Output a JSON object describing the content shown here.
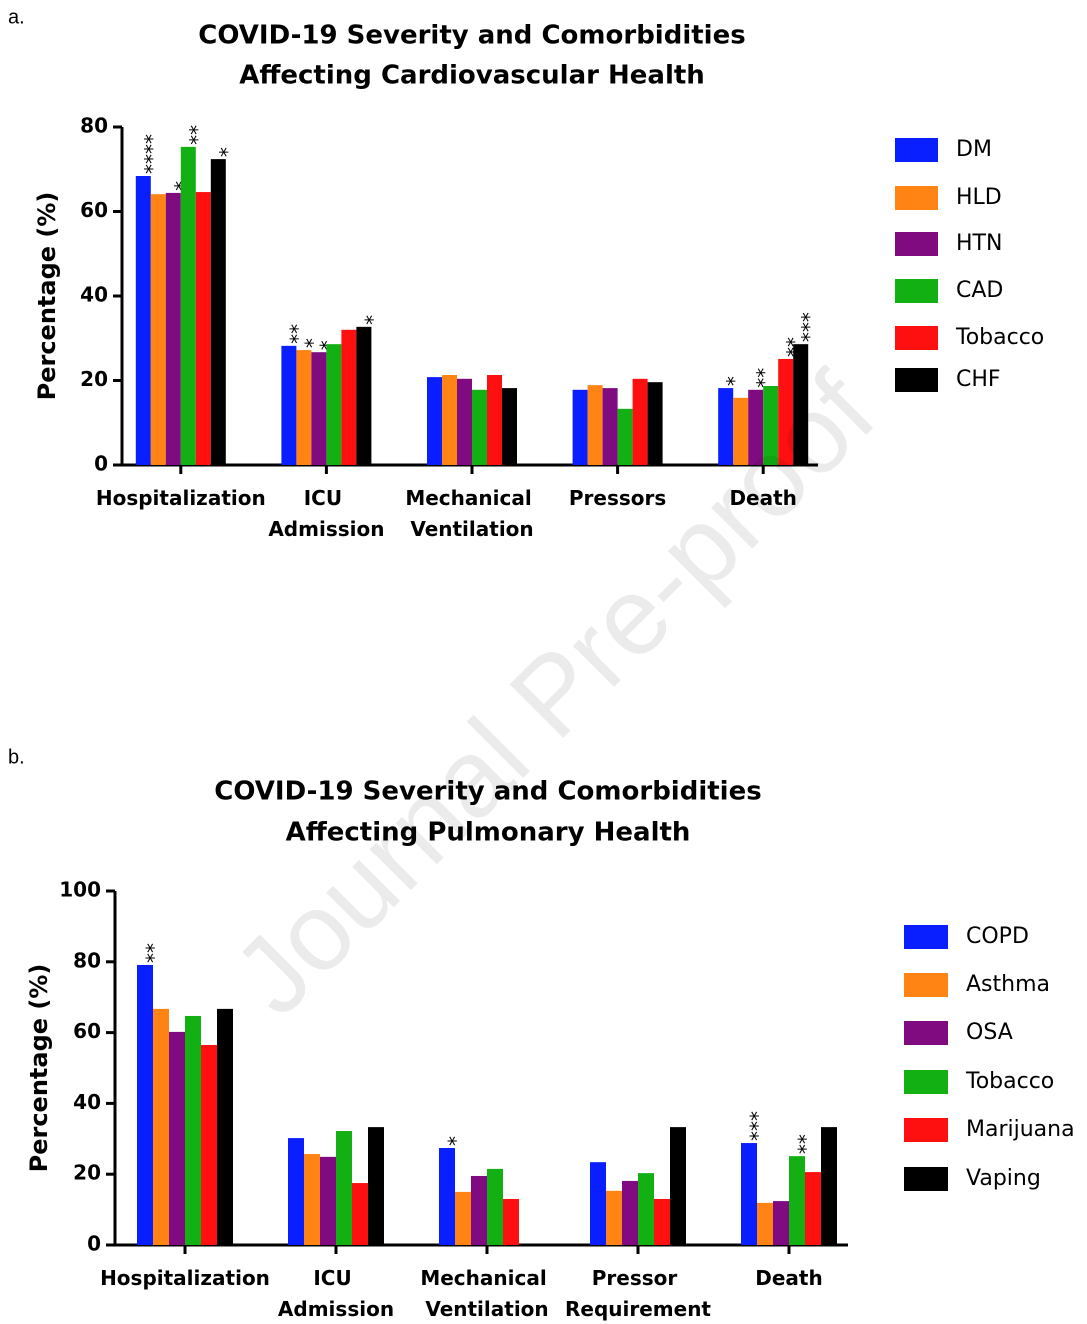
{
  "panel_labels": [
    "a.",
    "b."
  ],
  "watermark": "Journal Pre-proof",
  "chart_data": [
    {
      "type": "bar",
      "title": [
        "COVID-19 Severity and Comorbidities",
        "Affecting Cardiovascular Health"
      ],
      "y_label": "Percentage (%)",
      "categories": [
        "Hospitalization",
        "ICU Admission",
        "Mechanical Ventilation",
        "Pressors",
        "Death"
      ],
      "ylim": [
        0,
        80
      ],
      "yticks": [
        0,
        20,
        40,
        60,
        80
      ],
      "series": [
        {
          "name": "DM",
          "color": "#0a1fff",
          "values": [
            68.4,
            28.2,
            20.8,
            17.8,
            18.2
          ],
          "stars": [
            "****",
            "**",
            null,
            null,
            "*"
          ]
        },
        {
          "name": "HLD",
          "color": "#ff8413",
          "values": [
            64.1,
            27.2,
            21.3,
            18.9,
            15.9
          ],
          "stars": [
            null,
            "*",
            null,
            null,
            null
          ]
        },
        {
          "name": "HTN",
          "color": "#800a80",
          "values": [
            64.4,
            26.7,
            20.4,
            18.2,
            17.8
          ],
          "stars": [
            "*",
            "*",
            null,
            null,
            "**"
          ]
        },
        {
          "name": "CAD",
          "color": "#13b013",
          "values": [
            75.3,
            28.6,
            17.8,
            13.3,
            18.7
          ],
          "stars": [
            "**",
            null,
            null,
            null,
            null
          ]
        },
        {
          "name": "Tobacco",
          "color": "#ff1010",
          "values": [
            64.6,
            32.0,
            21.3,
            20.4,
            25.1
          ],
          "stars": [
            null,
            null,
            null,
            null,
            "**"
          ]
        },
        {
          "name": "CHF",
          "color": "#000000",
          "values": [
            72.4,
            32.7,
            18.2,
            19.6,
            28.6
          ],
          "stars": [
            "*",
            "*",
            null,
            null,
            "***"
          ]
        }
      ]
    },
    {
      "type": "bar",
      "title": [
        "COVID-19 Severity and Comorbidities",
        "Affecting Pulmonary Health"
      ],
      "y_label": "Percentage (%)",
      "categories": [
        "Hospitalization",
        "ICU Admission",
        "Mechanical Ventilation",
        "Pressor Requirement",
        "Death"
      ],
      "ylim": [
        0,
        100
      ],
      "yticks": [
        0,
        20,
        40,
        60,
        80,
        100
      ],
      "series": [
        {
          "name": "COPD",
          "color": "#0a1fff",
          "values": [
            79.1,
            30.2,
            27.4,
            23.4,
            28.8
          ],
          "stars": [
            "**",
            null,
            "*",
            null,
            "***"
          ]
        },
        {
          "name": "Asthma",
          "color": "#ff8413",
          "values": [
            66.7,
            25.7,
            15.0,
            15.3,
            11.9
          ],
          "stars": [
            null,
            null,
            null,
            null,
            null
          ]
        },
        {
          "name": "OSA",
          "color": "#800a80",
          "values": [
            60.2,
            24.9,
            19.5,
            18.1,
            12.4
          ],
          "stars": [
            null,
            null,
            null,
            null,
            null
          ]
        },
        {
          "name": "Tobacco",
          "color": "#13b013",
          "values": [
            64.7,
            32.2,
            21.5,
            20.3,
            25.1
          ],
          "stars": [
            null,
            null,
            null,
            null,
            "**"
          ]
        },
        {
          "name": "Marijuana",
          "color": "#ff1010",
          "values": [
            56.5,
            17.5,
            13.0,
            13.0,
            20.6
          ],
          "stars": [
            null,
            null,
            null,
            null,
            null
          ]
        },
        {
          "name": "Vaping",
          "color": "#000000",
          "values": [
            66.7,
            33.3,
            0,
            33.3,
            33.3
          ],
          "stars": [
            null,
            null,
            null,
            null,
            null
          ]
        }
      ]
    }
  ]
}
